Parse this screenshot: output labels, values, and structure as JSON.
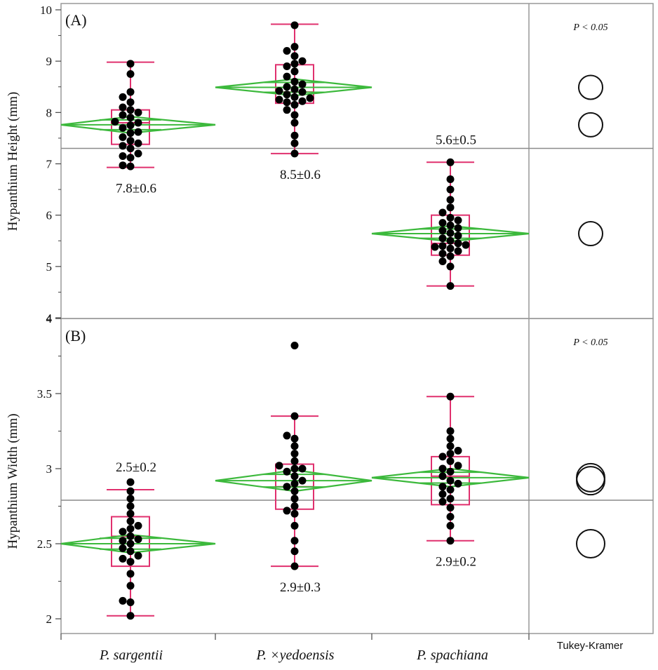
{
  "colors": {
    "diamond": "#3cb93c",
    "box": "#e0306e",
    "point": "#000000",
    "frame": "#999999",
    "grand_mean": "#8a8a8a",
    "axis": "#444444"
  },
  "categories": [
    "P. sargentii",
    "P. ×yedoensis",
    "P. spachiana"
  ],
  "tukey_label": "Tukey-Kramer",
  "chart_data": [
    {
      "type": "box",
      "panel": "A",
      "label": "(A)",
      "ylabel": "Hypanthium Height (mm)",
      "ylim": [
        4,
        10
      ],
      "yticks": [
        4,
        5,
        6,
        7,
        8,
        9,
        10
      ],
      "ytick_labels": [
        "4",
        "5",
        "6",
        "7",
        "8",
        "9",
        "10"
      ],
      "grand_mean": 7.3,
      "p_value_text": "P < 0.05",
      "groups": [
        {
          "category": "P. sargentii",
          "mean": 7.76,
          "ci_half": 0.16,
          "q1": 7.38,
          "median": 7.8,
          "q3": 8.05,
          "whisker_low": 6.93,
          "whisker_high": 8.98,
          "mean_sd_text": "7.8±0.6",
          "label_pos": "below",
          "points": [
            6.95,
            6.97,
            7.12,
            7.15,
            7.2,
            7.3,
            7.35,
            7.4,
            7.45,
            7.52,
            7.6,
            7.62,
            7.7,
            7.75,
            7.8,
            7.82,
            7.9,
            7.95,
            8.0,
            8.05,
            8.1,
            8.2,
            8.3,
            8.4,
            8.75,
            8.95
          ]
        },
        {
          "category": "P. ×yedoensis",
          "mean": 8.49,
          "ci_half": 0.16,
          "q1": 8.18,
          "median": 8.4,
          "q3": 8.93,
          "whisker_low": 7.2,
          "whisker_high": 9.72,
          "mean_sd_text": "8.5±0.6",
          "label_pos": "below",
          "points": [
            7.2,
            7.4,
            7.55,
            7.8,
            7.95,
            8.05,
            8.15,
            8.2,
            8.22,
            8.25,
            8.28,
            8.3,
            8.35,
            8.4,
            8.42,
            8.45,
            8.5,
            8.55,
            8.6,
            8.7,
            8.8,
            8.9,
            8.95,
            9.0,
            9.1,
            9.2,
            9.28,
            9.7
          ]
        },
        {
          "category": "P. spachiana",
          "mean": 5.64,
          "ci_half": 0.15,
          "q1": 5.22,
          "median": 5.45,
          "q3": 6.0,
          "whisker_low": 4.62,
          "whisker_high": 7.03,
          "mean_sd_text": "5.6±0.5",
          "label_pos": "above",
          "points": [
            4.62,
            5.0,
            5.1,
            5.2,
            5.25,
            5.3,
            5.35,
            5.38,
            5.4,
            5.42,
            5.45,
            5.5,
            5.55,
            5.6,
            5.65,
            5.7,
            5.75,
            5.8,
            5.85,
            5.9,
            5.95,
            6.05,
            6.15,
            6.3,
            6.5,
            6.7,
            7.03
          ]
        }
      ]
    },
    {
      "type": "box",
      "panel": "B",
      "label": "(B)",
      "ylabel": "Hypanthium Width (mm)",
      "ylim": [
        1.93,
        4.0
      ],
      "yticks": [
        2,
        2.5,
        3,
        3.5,
        4
      ],
      "ytick_labels": [
        "2",
        "2.5",
        "3",
        "3.5",
        "4"
      ],
      "grand_mean": 2.79,
      "p_value_text": "P < 0.05",
      "groups": [
        {
          "category": "P. sargentii",
          "mean": 2.5,
          "ci_half": 0.06,
          "q1": 2.35,
          "median": 2.55,
          "q3": 2.68,
          "whisker_low": 2.02,
          "whisker_high": 2.86,
          "mean_sd_text": "2.5±0.2",
          "label_pos": "above",
          "points": [
            2.02,
            2.11,
            2.12,
            2.22,
            2.3,
            2.38,
            2.4,
            2.42,
            2.45,
            2.47,
            2.5,
            2.52,
            2.53,
            2.55,
            2.58,
            2.6,
            2.62,
            2.65,
            2.7,
            2.75,
            2.8,
            2.85,
            2.91
          ]
        },
        {
          "category": "P. ×yedoensis",
          "mean": 2.92,
          "ci_half": 0.07,
          "q1": 2.73,
          "median": 2.88,
          "q3": 3.03,
          "whisker_low": 2.35,
          "whisker_high": 3.35,
          "mean_sd_text": "2.9±0.3",
          "label_pos": "below",
          "points": [
            2.35,
            2.45,
            2.52,
            2.62,
            2.7,
            2.72,
            2.75,
            2.8,
            2.85,
            2.88,
            2.9,
            2.92,
            2.95,
            2.98,
            3.0,
            3.0,
            3.02,
            3.05,
            3.1,
            3.15,
            3.2,
            3.22,
            3.35,
            3.82
          ]
        },
        {
          "category": "P. spachiana",
          "mean": 2.94,
          "ci_half": 0.06,
          "q1": 2.76,
          "median": 2.95,
          "q3": 3.08,
          "whisker_low": 2.52,
          "whisker_high": 3.48,
          "mean_sd_text": "2.9±0.2",
          "label_pos": "below",
          "points": [
            2.52,
            2.62,
            2.68,
            2.74,
            2.78,
            2.8,
            2.83,
            2.86,
            2.88,
            2.9,
            2.92,
            2.95,
            2.98,
            3.0,
            3.02,
            3.05,
            3.08,
            3.1,
            3.12,
            3.15,
            3.2,
            3.25,
            3.48
          ]
        }
      ]
    }
  ]
}
